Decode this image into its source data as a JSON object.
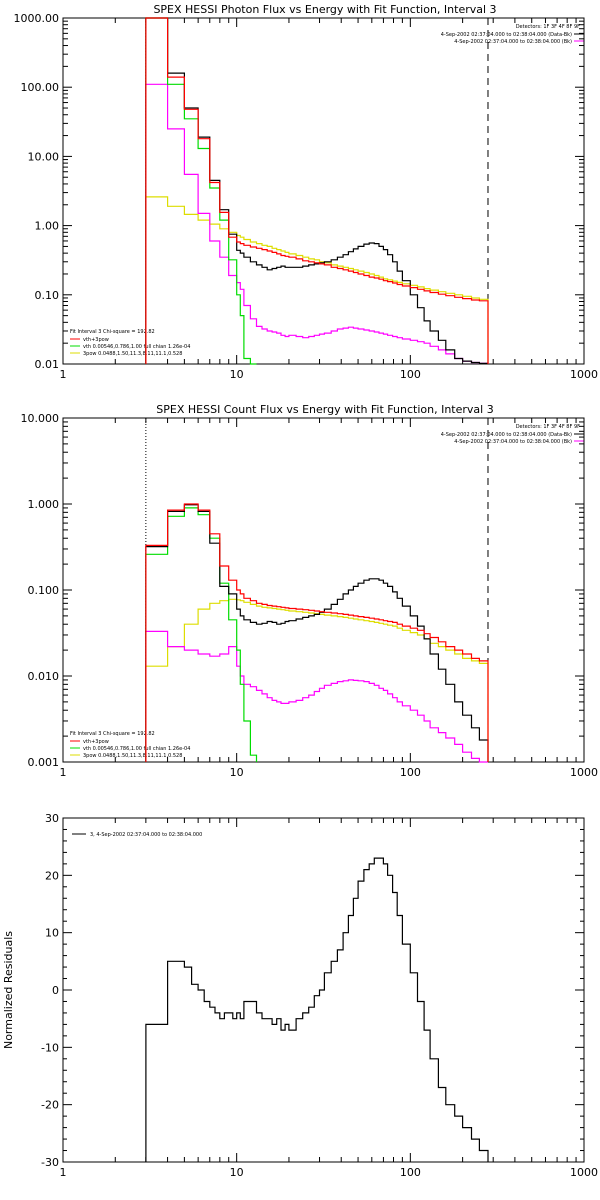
{
  "colors": {
    "total": "#000000",
    "sum": "#ff0000",
    "thermal": "#00dd00",
    "nonthermal": "#ff00ff",
    "power": "#dddd00",
    "axis": "#000000"
  },
  "chart_data": [
    {
      "type": "line",
      "scale": "log-log",
      "title": "SPEX HESSI Photon Flux vs Energy with Fit Function, Interval 3",
      "xlim": [
        1,
        1000
      ],
      "ylim": [
        0.01,
        1000
      ],
      "x_ticks": [
        "1",
        "10",
        "100",
        "1000"
      ],
      "y_ticks": [
        "0.01",
        "0.10",
        "1.00",
        "10.00",
        "100.00",
        "1000.00"
      ],
      "header_lines": [
        "Detectors: 1F 3F 4F 8F 9F",
        "4-Sep-2002 02:37:04.000 to 02:38:04.000 (Data-Bk)",
        "4-Sep-2002 02:37:04.000 to 02:38:04.000 (Bk)"
      ],
      "fit_text": {
        "title": "Fit Interval 3   Chi-square = 192.82",
        "lines": [
          "vth+3pow",
          "vth 0.00546,0.786,1.00  full chian 1.26e-04",
          "3pow 0.0488,1.50,11.3,8.11,11.1,0.528"
        ]
      },
      "edges": [
        3.0,
        3.5,
        4.0,
        4.5,
        5.0,
        5.5,
        6.0,
        6.5,
        7.0,
        7.5,
        8.0,
        8.5,
        9.0,
        9.5,
        10.0,
        10.5,
        11.0,
        12.0,
        13.0,
        14.0,
        15.0,
        16.0,
        17.0,
        18.0,
        19.0,
        20.0,
        22.0,
        24.0,
        26.0,
        28.0,
        30.0,
        32.0,
        35.0,
        38.0,
        41.0,
        44.0,
        47.0,
        50.0,
        54.0,
        58.0,
        62.0,
        66.0,
        70.0,
        74.0,
        79.0,
        84.0,
        90.0,
        100.0,
        110.0,
        120.0,
        130.0,
        145.0,
        160.0,
        180.0,
        200.0,
        225.0,
        250.0,
        280.0
      ],
      "cutoff_x": 280,
      "start_dotted_x": 3,
      "series": [
        {
          "name": "vth+3pow",
          "role": "sum",
          "values": [
            1000,
            1000,
            140,
            140,
            48,
            48,
            18,
            18,
            4.2,
            4.2,
            1.55,
            1.55,
            0.68,
            0.68,
            0.58,
            0.55,
            0.52,
            0.49,
            0.47,
            0.45,
            0.43,
            0.41,
            0.39,
            0.37,
            0.36,
            0.35,
            0.33,
            0.31,
            0.3,
            0.29,
            0.28,
            0.27,
            0.25,
            0.24,
            0.23,
            0.22,
            0.21,
            0.2,
            0.19,
            0.18,
            0.175,
            0.168,
            0.16,
            0.155,
            0.148,
            0.141,
            0.134,
            0.127,
            0.12,
            0.114,
            0.108,
            0.102,
            0.097,
            0.092,
            0.088,
            0.084,
            0.082
          ]
        },
        {
          "name": "vth",
          "role": "thermal",
          "values": [
            1000,
            1000,
            110,
            110,
            35,
            35,
            13,
            13,
            3.5,
            3.5,
            1.2,
            1.2,
            0.32,
            0.32,
            0.1,
            0.05,
            0.012,
            0.006
          ]
        },
        {
          "name": "Data-Bk",
          "role": "total",
          "values": [
            1000,
            1000,
            160,
            160,
            50,
            50,
            19,
            19,
            4.5,
            4.5,
            1.7,
            1.7,
            0.75,
            0.75,
            0.44,
            0.4,
            0.35,
            0.3,
            0.27,
            0.25,
            0.23,
            0.24,
            0.25,
            0.26,
            0.25,
            0.25,
            0.25,
            0.26,
            0.27,
            0.28,
            0.29,
            0.3,
            0.32,
            0.35,
            0.38,
            0.42,
            0.46,
            0.5,
            0.54,
            0.56,
            0.55,
            0.5,
            0.45,
            0.38,
            0.3,
            0.22,
            0.16,
            0.1,
            0.065,
            0.042,
            0.03,
            0.022,
            0.016,
            0.012,
            0.011,
            0.0105,
            0.0102
          ]
        },
        {
          "name": "Bk",
          "role": "nonthermal",
          "values": [
            110,
            110,
            25,
            25,
            5.5,
            5.5,
            1.5,
            1.5,
            0.6,
            0.6,
            0.35,
            0.35,
            0.19,
            0.19,
            0.15,
            0.12,
            0.07,
            0.045,
            0.035,
            0.032,
            0.03,
            0.029,
            0.028,
            0.026,
            0.025,
            0.026,
            0.025,
            0.024,
            0.025,
            0.026,
            0.027,
            0.028,
            0.03,
            0.032,
            0.033,
            0.034,
            0.033,
            0.032,
            0.031,
            0.03,
            0.029,
            0.028,
            0.027,
            0.026,
            0.025,
            0.024,
            0.023,
            0.022,
            0.021,
            0.02,
            0.018,
            0.016,
            0.014,
            0.012,
            0.011,
            0.0105,
            0.0102
          ]
        },
        {
          "name": "3pow",
          "role": "power",
          "values": [
            2.6,
            2.6,
            1.9,
            1.9,
            1.45,
            1.45,
            1.2,
            1.2,
            1.05,
            1.05,
            0.9,
            0.9,
            0.8,
            0.8,
            0.72,
            0.68,
            0.63,
            0.58,
            0.55,
            0.52,
            0.5,
            0.47,
            0.45,
            0.43,
            0.41,
            0.39,
            0.37,
            0.35,
            0.33,
            0.32,
            0.3,
            0.29,
            0.27,
            0.26,
            0.25,
            0.24,
            0.23,
            0.22,
            0.21,
            0.2,
            0.19,
            0.18,
            0.17,
            0.165,
            0.158,
            0.151,
            0.144,
            0.137,
            0.13,
            0.123,
            0.117,
            0.111,
            0.105,
            0.1,
            0.095,
            0.09,
            0.086
          ]
        }
      ]
    },
    {
      "type": "line",
      "scale": "log-log",
      "title": "SPEX HESSI Count Flux vs Energy with Fit Function, Interval 3",
      "xlim": [
        1,
        1000
      ],
      "ylim": [
        0.001,
        10
      ],
      "x_ticks": [
        "1",
        "10",
        "100",
        "1000"
      ],
      "y_ticks": [
        "0.001",
        "0.010",
        "0.100",
        "1.000",
        "10.000"
      ],
      "header_lines": [
        "Detectors: 1F 3F 4F 8F 9F",
        "4-Sep-2002 02:37:04.000 to 02:38:04.000 (Data-Bk)",
        "4-Sep-2002 02:37:04.000 to 02:38:04.000 (Bk)"
      ],
      "fit_text": {
        "title": "Fit Interval 3   Chi-square = 192.82",
        "lines": [
          "vth+3pow",
          "vth 0.00546,0.786,1.00  full chian 1.26e-04",
          "3pow 0.0488,1.50,11.3,8.11,11.1,0.528"
        ]
      },
      "edges": [
        3.0,
        3.5,
        4.0,
        4.5,
        5.0,
        5.5,
        6.0,
        6.5,
        7.0,
        7.5,
        8.0,
        8.5,
        9.0,
        9.5,
        10.0,
        10.5,
        11.0,
        12.0,
        13.0,
        14.0,
        15.0,
        16.0,
        17.0,
        18.0,
        19.0,
        20.0,
        22.0,
        24.0,
        26.0,
        28.0,
        30.0,
        32.0,
        35.0,
        38.0,
        41.0,
        44.0,
        47.0,
        50.0,
        54.0,
        58.0,
        62.0,
        66.0,
        70.0,
        74.0,
        79.0,
        84.0,
        90.0,
        100.0,
        110.0,
        120.0,
        130.0,
        145.0,
        160.0,
        180.0,
        200.0,
        225.0,
        250.0,
        280.0
      ],
      "cutoff_x": 280,
      "start_dotted_x": 3,
      "series": [
        {
          "name": "vth+3pow",
          "role": "sum",
          "values": [
            0.33,
            0.33,
            0.85,
            0.85,
            1.0,
            1.0,
            0.85,
            0.85,
            0.45,
            0.45,
            0.19,
            0.19,
            0.13,
            0.13,
            0.1,
            0.09,
            0.08,
            0.075,
            0.07,
            0.068,
            0.066,
            0.065,
            0.064,
            0.063,
            0.062,
            0.061,
            0.06,
            0.059,
            0.058,
            0.057,
            0.056,
            0.055,
            0.054,
            0.053,
            0.052,
            0.051,
            0.05,
            0.049,
            0.048,
            0.047,
            0.046,
            0.045,
            0.044,
            0.043,
            0.042,
            0.04,
            0.038,
            0.036,
            0.034,
            0.031,
            0.028,
            0.025,
            0.022,
            0.02,
            0.018,
            0.016,
            0.015
          ]
        },
        {
          "name": "vth",
          "role": "thermal",
          "values": [
            0.26,
            0.26,
            0.72,
            0.72,
            0.9,
            0.9,
            0.75,
            0.75,
            0.4,
            0.4,
            0.12,
            0.12,
            0.045,
            0.045,
            0.02,
            0.008,
            0.003,
            0.0012
          ]
        },
        {
          "name": "Data-Bk",
          "role": "total",
          "values": [
            0.32,
            0.32,
            0.82,
            0.82,
            0.98,
            0.98,
            0.82,
            0.82,
            0.35,
            0.35,
            0.11,
            0.11,
            0.09,
            0.09,
            0.06,
            0.05,
            0.045,
            0.042,
            0.04,
            0.041,
            0.043,
            0.042,
            0.04,
            0.041,
            0.043,
            0.044,
            0.046,
            0.048,
            0.05,
            0.052,
            0.055,
            0.06,
            0.068,
            0.078,
            0.09,
            0.1,
            0.11,
            0.12,
            0.13,
            0.135,
            0.135,
            0.13,
            0.12,
            0.11,
            0.095,
            0.08,
            0.065,
            0.05,
            0.038,
            0.027,
            0.018,
            0.012,
            0.008,
            0.005,
            0.0035,
            0.0025,
            0.0018
          ]
        },
        {
          "name": "Bk",
          "role": "nonthermal",
          "values": [
            0.033,
            0.033,
            0.022,
            0.022,
            0.02,
            0.02,
            0.018,
            0.018,
            0.017,
            0.017,
            0.018,
            0.018,
            0.022,
            0.022,
            0.013,
            0.01,
            0.008,
            0.0075,
            0.0068,
            0.0062,
            0.0056,
            0.0052,
            0.005,
            0.0048,
            0.0048,
            0.005,
            0.0052,
            0.0056,
            0.006,
            0.0066,
            0.0072,
            0.0078,
            0.0082,
            0.0086,
            0.0088,
            0.009,
            0.0089,
            0.0088,
            0.0086,
            0.0082,
            0.0078,
            0.0072,
            0.0068,
            0.0062,
            0.0056,
            0.005,
            0.0045,
            0.004,
            0.0035,
            0.003,
            0.0025,
            0.0022,
            0.0019,
            0.0016,
            0.0013,
            0.0011,
            0.001
          ]
        },
        {
          "name": "3pow",
          "role": "power",
          "values": [
            0.013,
            0.013,
            0.022,
            0.022,
            0.04,
            0.04,
            0.06,
            0.06,
            0.07,
            0.07,
            0.075,
            0.075,
            0.078,
            0.078,
            0.077,
            0.075,
            0.072,
            0.068,
            0.065,
            0.063,
            0.062,
            0.061,
            0.06,
            0.059,
            0.058,
            0.057,
            0.056,
            0.055,
            0.054,
            0.053,
            0.052,
            0.051,
            0.05,
            0.049,
            0.048,
            0.047,
            0.046,
            0.045,
            0.044,
            0.043,
            0.042,
            0.041,
            0.04,
            0.039,
            0.038,
            0.036,
            0.034,
            0.032,
            0.03,
            0.027,
            0.024,
            0.022,
            0.02,
            0.018,
            0.016,
            0.015,
            0.014
          ]
        }
      ]
    },
    {
      "type": "line",
      "scale": "log-linear",
      "title": "",
      "xlim": [
        1,
        1000
      ],
      "ylim": [
        -30,
        30
      ],
      "x_ticks": [
        "1",
        "10",
        "100",
        "1000"
      ],
      "y_ticks": [
        "-30",
        "-20",
        "-10",
        "0",
        "10",
        "20",
        "30"
      ],
      "ylabel": "Normalized Residuals",
      "legend_label": "3, 4-Sep-2002 02:37:04.000 to 02:38:04.000",
      "edges": [
        3.0,
        3.5,
        4.0,
        4.5,
        5.0,
        5.5,
        6.0,
        6.5,
        7.0,
        7.5,
        8.0,
        8.5,
        9.0,
        9.5,
        10.0,
        10.5,
        11.0,
        12.0,
        13.0,
        14.0,
        15.0,
        16.0,
        17.0,
        18.0,
        19.0,
        20.0,
        22.0,
        24.0,
        26.0,
        28.0,
        30.0,
        32.0,
        35.0,
        38.0,
        41.0,
        44.0,
        47.0,
        50.0,
        54.0,
        58.0,
        62.0,
        66.0,
        70.0,
        74.0,
        79.0,
        84.0,
        90.0,
        100.0,
        110.0,
        120.0,
        130.0,
        145.0,
        160.0,
        180.0,
        200.0,
        225.0,
        250.0,
        280.0
      ],
      "series": [
        {
          "name": "3, 4-Sep-2002 02:37:04.000 to 02:38:04.000",
          "role": "total",
          "values": [
            -6,
            -6,
            5,
            5,
            4,
            1,
            0,
            -2,
            -3,
            -4,
            -5,
            -4,
            -4,
            -5,
            -4,
            -5,
            -2,
            -2,
            -4,
            -5,
            -5,
            -6,
            -5,
            -7,
            -6,
            -7,
            -5,
            -4,
            -3,
            -1,
            0,
            3,
            5,
            7,
            10,
            13,
            16,
            19,
            21,
            22,
            23,
            23,
            22,
            20,
            17,
            13,
            8,
            3,
            -2,
            -7,
            -12,
            -17,
            -20,
            -22,
            -24,
            -26,
            -28
          ]
        }
      ]
    }
  ]
}
